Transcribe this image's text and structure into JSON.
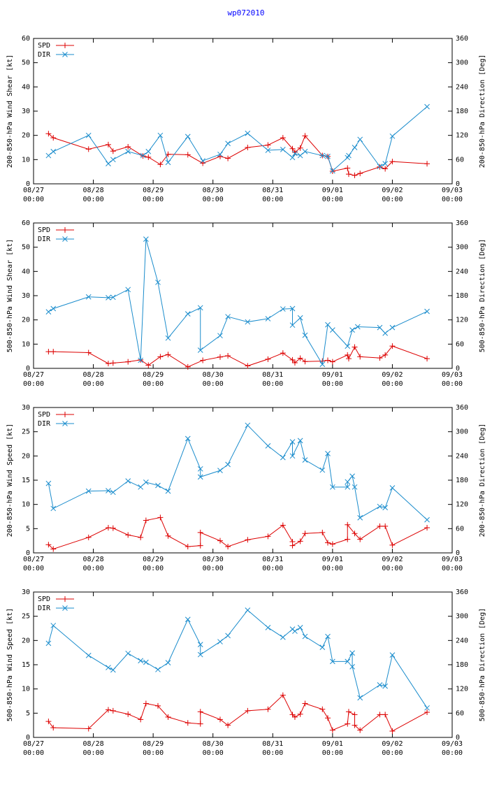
{
  "title": "wp072010",
  "colors": {
    "spd": "#dd0000",
    "dir": "#1a8ccc",
    "axis": "#000000",
    "grid": "#000000"
  },
  "x_ticks": [
    "08/27",
    "08/28",
    "08/29",
    "08/30",
    "08/31",
    "09/01",
    "09/02",
    "09/03"
  ],
  "x_tick_time": "00:00",
  "chart_data": [
    {
      "type": "line",
      "ylabel": "200-850-hPa Wind Shear [kt]",
      "y2label": "200-850-hPa Direction [Deg]",
      "ylim": [
        0,
        60
      ],
      "y2lim": [
        0,
        360
      ],
      "yticks": [
        0,
        10,
        20,
        30,
        40,
        50,
        60
      ],
      "y2ticks": [
        0,
        60,
        120,
        180,
        240,
        300,
        360
      ],
      "xlim": [
        0,
        7
      ],
      "series": [
        {
          "name": "SPD",
          "axis": "left",
          "marker": "plus",
          "x": [
            0.25,
            0.33,
            0.92,
            1.25,
            1.33,
            1.58,
            1.83,
            1.92,
            2.12,
            2.25,
            2.58,
            2.83,
            3.12,
            3.25,
            3.58,
            3.92,
            4.17,
            4.33,
            4.37,
            4.46,
            4.54,
            4.83,
            4.92,
            5.0,
            5.25,
            5.27,
            5.37,
            5.46,
            5.79,
            5.88,
            6.0,
            6.58
          ],
          "values": [
            20.7,
            19.0,
            14.3,
            16.2,
            13.5,
            15.3,
            11.5,
            11.0,
            8.0,
            12.2,
            12.0,
            8.5,
            11.3,
            10.5,
            15.0,
            16.0,
            19.0,
            14.5,
            13.0,
            14.8,
            19.8,
            11.7,
            11.3,
            5.2,
            6.5,
            4.0,
            3.5,
            4.3,
            7.0,
            6.2,
            9.2,
            8.3
          ]
        },
        {
          "name": "DIR",
          "axis": "right",
          "marker": "cross",
          "x": [
            0.25,
            0.33,
            0.92,
            1.25,
            1.33,
            1.58,
            1.83,
            1.92,
            2.12,
            2.25,
            2.58,
            2.83,
            3.12,
            3.25,
            3.58,
            3.92,
            4.17,
            4.33,
            4.37,
            4.46,
            4.54,
            4.83,
            4.92,
            5.0,
            5.25,
            5.27,
            5.37,
            5.46,
            5.79,
            5.88,
            6.0,
            6.58
          ],
          "values": [
            70,
            80,
            120,
            50,
            60,
            80,
            70,
            80,
            120,
            53,
            117,
            57,
            73,
            100,
            125,
            83,
            85,
            65,
            75,
            70,
            80,
            70,
            68,
            32,
            65,
            70,
            90,
            110,
            43,
            50,
            118,
            191
          ]
        }
      ]
    },
    {
      "type": "line",
      "ylabel": "500-850-hPa Wind Shear [kt]",
      "y2label": "500-850-hPa Direction [Deg]",
      "ylim": [
        0,
        60
      ],
      "y2lim": [
        0,
        360
      ],
      "yticks": [
        0,
        10,
        20,
        30,
        40,
        50,
        60
      ],
      "y2ticks": [
        0,
        60,
        120,
        180,
        240,
        300,
        360
      ],
      "xlim": [
        0,
        7
      ],
      "series": [
        {
          "name": "SPD",
          "axis": "left",
          "marker": "plus",
          "x": [
            0.25,
            0.33,
            0.92,
            1.25,
            1.33,
            1.58,
            1.79,
            1.92,
            2.12,
            2.25,
            2.58,
            2.83,
            3.12,
            3.25,
            3.58,
            3.92,
            4.17,
            4.33,
            4.37,
            4.46,
            4.54,
            4.83,
            4.92,
            5.0,
            5.25,
            5.27,
            5.37,
            5.46,
            5.79,
            5.88,
            6.0,
            6.58
          ],
          "values": [
            6.9,
            6.9,
            6.5,
            2.0,
            2.2,
            2.7,
            3.5,
            1.3,
            4.8,
            5.7,
            0.6,
            3.3,
            4.7,
            5.2,
            1.0,
            3.8,
            6.3,
            3.5,
            2.3,
            4.2,
            2.8,
            3.0,
            3.3,
            2.7,
            5.5,
            4.0,
            8.8,
            4.8,
            4.3,
            5.5,
            9.2,
            4.0
          ]
        },
        {
          "name": "DIR",
          "axis": "right",
          "marker": "cross",
          "x": [
            0.25,
            0.33,
            0.92,
            1.25,
            1.33,
            1.58,
            1.79,
            1.88,
            2.08,
            2.25,
            2.58,
            2.79,
            2.79,
            3.12,
            3.25,
            3.58,
            3.92,
            4.17,
            4.33,
            4.33,
            4.46,
            4.54,
            4.83,
            4.92,
            5.0,
            5.25,
            5.33,
            5.42,
            5.79,
            5.88,
            6.0,
            6.58
          ],
          "values": [
            140,
            148,
            177,
            175,
            176,
            195,
            20,
            320,
            213,
            75,
            135,
            150,
            45,
            81,
            128,
            115,
            123,
            147,
            148,
            107,
            125,
            82,
            10,
            108,
            95,
            55,
            95,
            103,
            101,
            87,
            101,
            141
          ]
        }
      ]
    },
    {
      "type": "line",
      "ylabel": "200-850-hPa Wind Speed [kt]",
      "y2label": "200-850-hPa Direction [Deg]",
      "ylim": [
        0,
        30
      ],
      "y2lim": [
        0,
        360
      ],
      "yticks": [
        0,
        5,
        10,
        15,
        20,
        25,
        30
      ],
      "y2ticks": [
        0,
        60,
        120,
        180,
        240,
        300,
        360
      ],
      "xlim": [
        0,
        7
      ],
      "series": [
        {
          "name": "SPD",
          "axis": "left",
          "marker": "plus",
          "x": [
            0.25,
            0.33,
            0.92,
            1.25,
            1.33,
            1.58,
            1.79,
            1.88,
            2.12,
            2.25,
            2.58,
            2.79,
            2.79,
            3.12,
            3.25,
            3.58,
            3.92,
            4.17,
            4.33,
            4.33,
            4.46,
            4.54,
            4.83,
            4.92,
            5.0,
            5.25,
            5.25,
            5.37,
            5.46,
            5.79,
            5.88,
            6.0,
            6.58
          ],
          "values": [
            1.7,
            0.8,
            3.2,
            5.2,
            5.1,
            3.7,
            3.2,
            6.7,
            7.3,
            3.5,
            1.3,
            1.5,
            4.2,
            2.5,
            1.3,
            2.7,
            3.4,
            5.7,
            2.3,
            1.5,
            2.4,
            4.0,
            4.2,
            2.1,
            1.8,
            2.8,
            5.8,
            4.0,
            2.8,
            5.5,
            5.5,
            1.6,
            5.2
          ]
        },
        {
          "name": "DIR",
          "axis": "right",
          "marker": "cross",
          "x": [
            0.25,
            0.33,
            0.92,
            1.25,
            1.33,
            1.58,
            1.79,
            1.88,
            2.08,
            2.25,
            2.58,
            2.79,
            2.79,
            3.12,
            3.25,
            3.58,
            3.92,
            4.17,
            4.33,
            4.33,
            4.46,
            4.54,
            4.83,
            4.92,
            5.0,
            5.25,
            5.25,
            5.33,
            5.37,
            5.46,
            5.79,
            5.88,
            6.0,
            6.58
          ],
          "values": [
            172,
            110,
            153,
            154,
            150,
            178,
            163,
            175,
            167,
            153,
            283,
            208,
            188,
            204,
            219,
            316,
            265,
            236,
            275,
            240,
            278,
            230,
            205,
            246,
            163,
            163,
            176,
            190,
            163,
            87,
            115,
            112,
            161,
            82
          ]
        }
      ]
    },
    {
      "type": "line",
      "ylabel": "500-850-hPa Wind Speed [kt]",
      "y2label": "500-850-hPa Direction [Deg]",
      "ylim": [
        0,
        30
      ],
      "y2lim": [
        0,
        360
      ],
      "yticks": [
        0,
        5,
        10,
        15,
        20,
        25,
        30
      ],
      "y2ticks": [
        0,
        60,
        120,
        180,
        240,
        300,
        360
      ],
      "xlim": [
        0,
        7
      ],
      "series": [
        {
          "name": "SPD",
          "axis": "left",
          "marker": "plus",
          "x": [
            0.25,
            0.33,
            0.92,
            1.25,
            1.33,
            1.58,
            1.79,
            1.88,
            2.08,
            2.25,
            2.58,
            2.79,
            2.79,
            3.12,
            3.25,
            3.58,
            3.92,
            4.17,
            4.33,
            4.37,
            4.46,
            4.54,
            4.83,
            4.92,
            5.0,
            5.25,
            5.27,
            5.37,
            5.37,
            5.46,
            5.79,
            5.88,
            6.0,
            6.58
          ],
          "values": [
            3.3,
            2.0,
            1.8,
            5.7,
            5.5,
            4.8,
            3.7,
            7.0,
            6.5,
            4.2,
            3.0,
            2.8,
            5.3,
            3.7,
            2.5,
            5.5,
            5.8,
            8.7,
            4.7,
            4.2,
            4.8,
            7.0,
            5.8,
            4.0,
            1.5,
            2.8,
            5.3,
            4.7,
            2.5,
            1.5,
            4.7,
            4.7,
            1.3,
            5.2
          ]
        },
        {
          "name": "DIR",
          "axis": "right",
          "marker": "cross",
          "x": [
            0.25,
            0.33,
            0.92,
            1.25,
            1.33,
            1.58,
            1.79,
            1.88,
            2.08,
            2.25,
            2.58,
            2.79,
            2.79,
            3.12,
            3.25,
            3.58,
            3.92,
            4.17,
            4.33,
            4.37,
            4.46,
            4.54,
            4.83,
            4.92,
            5.0,
            5.25,
            5.33,
            5.33,
            5.46,
            5.79,
            5.88,
            6.0,
            6.58
          ],
          "values": [
            233,
            277,
            203,
            173,
            167,
            208,
            190,
            186,
            168,
            185,
            292,
            230,
            205,
            237,
            252,
            315,
            272,
            248,
            268,
            263,
            272,
            250,
            223,
            250,
            188,
            188,
            209,
            175,
            98,
            130,
            127,
            204,
            73
          ]
        }
      ]
    }
  ]
}
